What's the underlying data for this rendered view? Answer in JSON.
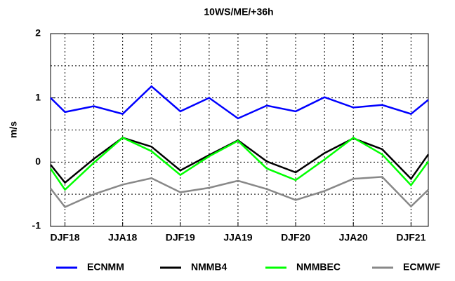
{
  "chart_data": {
    "type": "line",
    "title": "10WS/ME/+36h",
    "y_label": "m/s",
    "x": [
      -0.5,
      0,
      1,
      2,
      3,
      4,
      5,
      6,
      7,
      8,
      9,
      10,
      11,
      12,
      12.6
    ],
    "xlim": [
      -0.5,
      12.6
    ],
    "xticks": [
      {
        "value": 0,
        "label": "DJF18"
      },
      {
        "value": 2,
        "label": "JJA18"
      },
      {
        "value": 4,
        "label": "DJF19"
      },
      {
        "value": 6,
        "label": "JJA19"
      },
      {
        "value": 8,
        "label": "DJF20"
      },
      {
        "value": 10,
        "label": "JJA20"
      },
      {
        "value": 12,
        "label": "DJF21"
      }
    ],
    "xminorticks": [
      1,
      3,
      5,
      7,
      9,
      11
    ],
    "ylim": [
      -1,
      2
    ],
    "yticks": [
      -1,
      0,
      1,
      2
    ],
    "yminorticks": [
      -0.5,
      0.5,
      1.5
    ],
    "grid": true,
    "legend": "bottom",
    "series": [
      {
        "name": "ECNMM",
        "color": "#0000ff",
        "values": [
          1.0,
          0.78,
          0.87,
          0.75,
          1.18,
          0.79,
          1.0,
          0.68,
          0.88,
          0.79,
          1.01,
          0.85,
          0.89,
          0.75,
          0.97
        ]
      },
      {
        "name": "NMMB4",
        "color": "#000000",
        "values": [
          -0.04,
          -0.32,
          0.05,
          0.38,
          0.24,
          -0.13,
          0.11,
          0.34,
          0.01,
          -0.16,
          0.14,
          0.37,
          0.2,
          -0.26,
          0.12
        ]
      },
      {
        "name": "NMMBEC",
        "color": "#00ff00",
        "values": [
          -0.1,
          -0.43,
          -0.01,
          0.38,
          0.17,
          -0.2,
          0.09,
          0.33,
          -0.1,
          -0.28,
          0.04,
          0.38,
          0.12,
          -0.36,
          0.01
        ]
      },
      {
        "name": "ECMWF",
        "color": "#888888",
        "values": [
          -0.41,
          -0.7,
          -0.5,
          -0.35,
          -0.25,
          -0.47,
          -0.4,
          -0.29,
          -0.42,
          -0.59,
          -0.45,
          -0.26,
          -0.23,
          -0.69,
          -0.43
        ]
      }
    ]
  }
}
